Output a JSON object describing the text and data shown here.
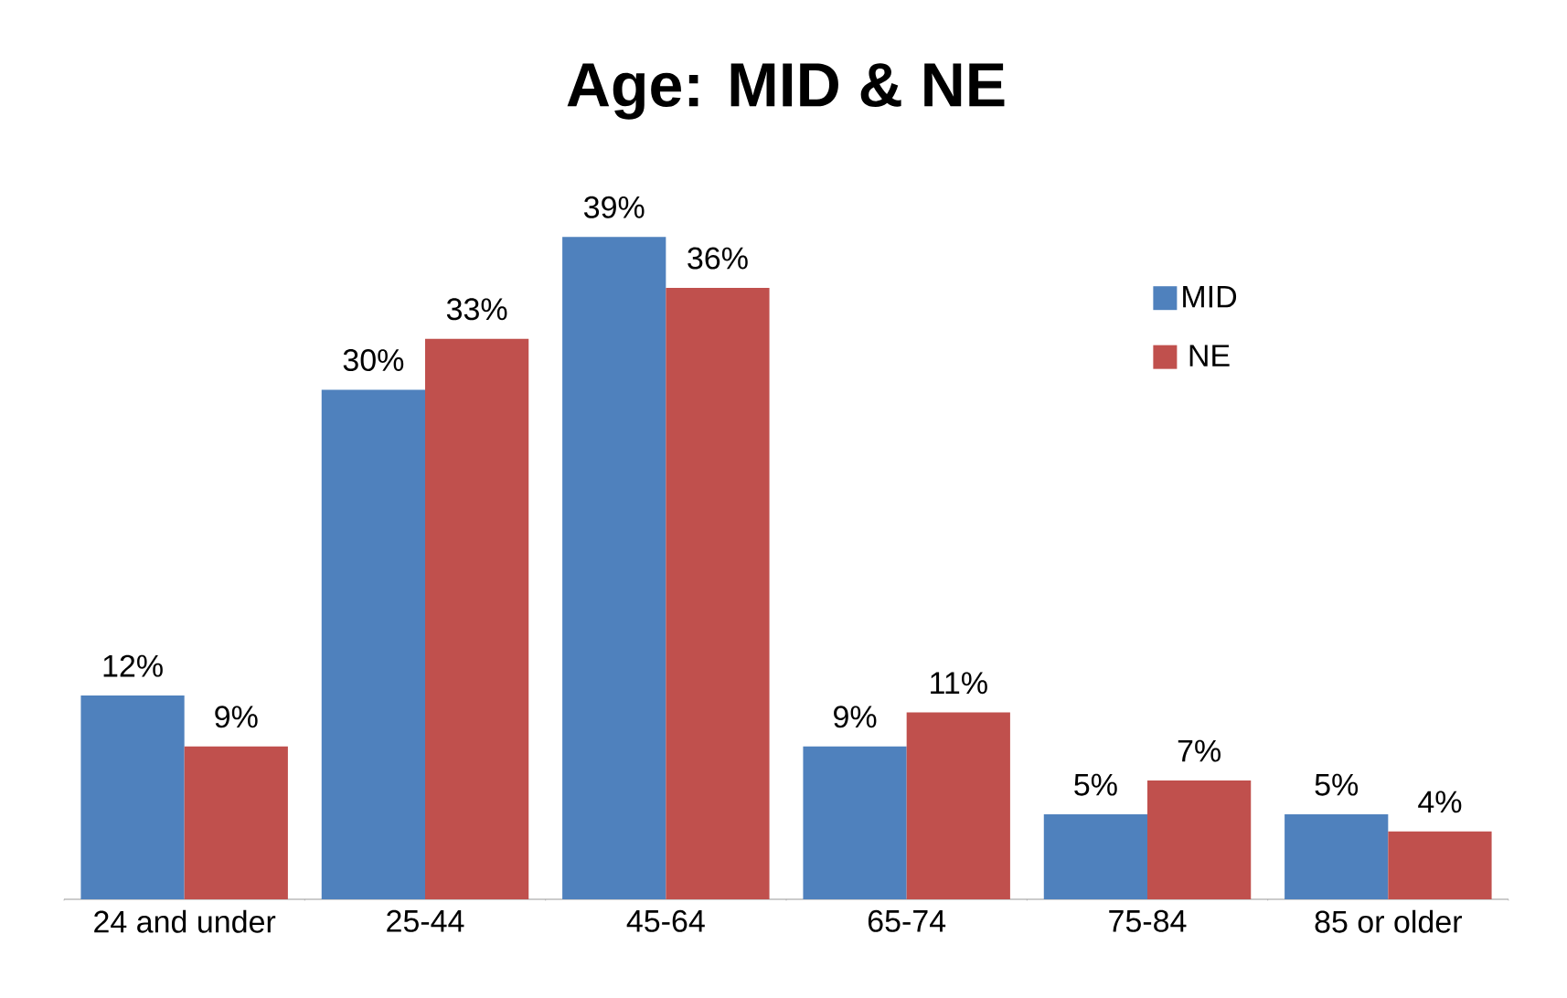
{
  "chart_data": {
    "type": "bar",
    "title": "Age: MID & NE",
    "categories": [
      "24 and under",
      "25-44",
      "45-64",
      "65-74",
      "75-84",
      "85 or older"
    ],
    "series": [
      {
        "name": "MID",
        "color": "#4f81bd",
        "values": [
          12,
          30,
          39,
          9,
          5,
          5
        ],
        "value_labels": [
          "12%",
          "30%",
          "39%",
          "9%",
          "5%",
          "5%"
        ]
      },
      {
        "name": "NE",
        "color": "#c0504d",
        "values": [
          9,
          33,
          36,
          11,
          7,
          4
        ],
        "value_labels": [
          "9%",
          "33%",
          "36%",
          "11%",
          "7%",
          "4%"
        ]
      }
    ],
    "legend": "top right"
  }
}
